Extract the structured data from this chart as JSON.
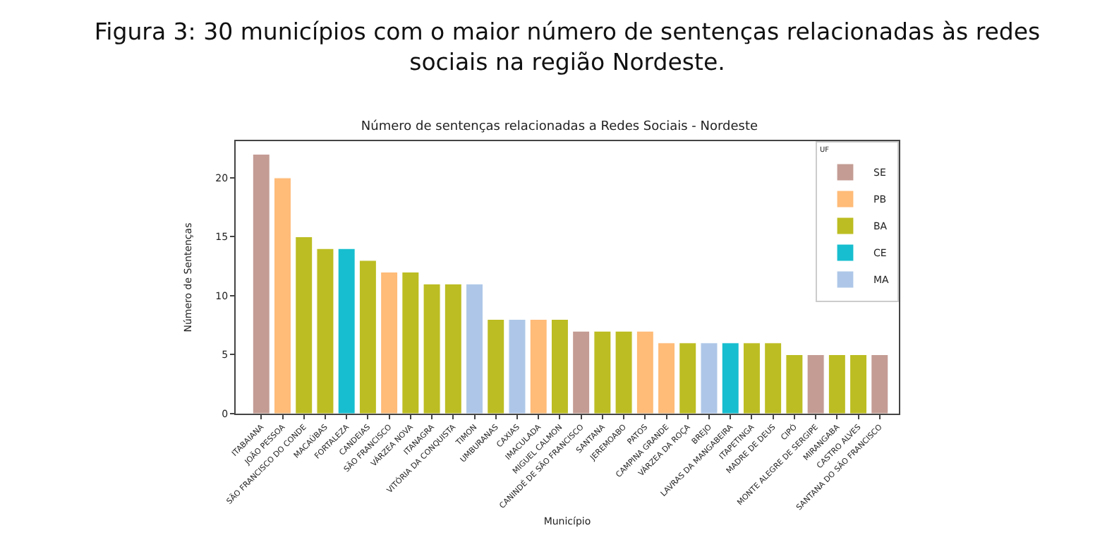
{
  "chart_data": {
    "type": "bar",
    "title": "Número de sentenças relacionadas a Redes Sociais - Nordeste",
    "xlabel": "Município",
    "ylabel": "Número de Sentenças",
    "legend_title": "UF",
    "annotations": [
      "Figura 3: 30 municípios com o maior número de sentenças relacionadas às redes sociais na região Nordeste."
    ],
    "categories": [
      "ITABAIANA",
      "JOÃO PESSOA",
      "SÃO FRANCISCO DO CONDE",
      "MACAÚBAS",
      "FORTALEZA",
      "CANDEIAS",
      "SÃO FRANCISCO",
      "VÁRZEA NOVA",
      "ITANAGRA",
      "VITÓRIA DA CONQUISTA",
      "TIMON",
      "UMBURANAS",
      "CAXIAS",
      "IMACULADA",
      "MIGUEL CALMON",
      "CANINDÉ DE SÃO FRANCISCO",
      "SANTANA",
      "JEREMOABO",
      "PATOS",
      "CAMPINA GRANDE",
      "VÁRZEA DA ROÇA",
      "BREJO",
      "LAVRAS DA MANGABEIRA",
      "ITAPETINGA",
      "MADRE DE DEUS",
      "CIPÓ",
      "MONTE ALEGRE DE SERGIPE",
      "MIRANGABA",
      "CASTRO ALVES",
      "SANTANA DO SÃO FRANCISCO"
    ],
    "series": [
      {
        "name": "SE",
        "color": "#c49c94",
        "values": [
          22,
          null,
          null,
          null,
          null,
          null,
          null,
          null,
          null,
          null,
          null,
          null,
          null,
          null,
          null,
          7,
          null,
          null,
          null,
          null,
          null,
          null,
          null,
          null,
          null,
          null,
          5,
          null,
          null,
          5
        ]
      },
      {
        "name": "PB",
        "color": "#ffbb78",
        "values": [
          null,
          20,
          null,
          null,
          null,
          null,
          12,
          null,
          null,
          null,
          null,
          null,
          null,
          8,
          null,
          null,
          null,
          null,
          7,
          6,
          null,
          null,
          null,
          null,
          null,
          null,
          null,
          null,
          null,
          null
        ]
      },
      {
        "name": "BA",
        "color": "#bcbd22",
        "values": [
          null,
          null,
          15,
          14,
          null,
          13,
          null,
          12,
          11,
          11,
          null,
          8,
          null,
          null,
          8,
          null,
          7,
          7,
          null,
          null,
          6,
          null,
          null,
          6,
          6,
          5,
          null,
          5,
          5,
          null
        ]
      },
      {
        "name": "CE",
        "color": "#17becf",
        "values": [
          null,
          null,
          null,
          null,
          14,
          null,
          null,
          null,
          null,
          null,
          null,
          null,
          null,
          null,
          null,
          null,
          null,
          null,
          null,
          null,
          null,
          null,
          6,
          null,
          null,
          null,
          null,
          null,
          null,
          null
        ]
      },
      {
        "name": "MA",
        "color": "#aec7e8",
        "values": [
          null,
          null,
          null,
          null,
          null,
          null,
          null,
          null,
          null,
          null,
          11,
          null,
          8,
          null,
          null,
          null,
          null,
          null,
          null,
          null,
          null,
          6,
          null,
          null,
          null,
          null,
          null,
          null,
          null,
          null
        ]
      }
    ],
    "ylim": [
      0,
      23.1
    ],
    "yticks": [
      0,
      5,
      10,
      15,
      20
    ],
    "legend": "top right"
  }
}
